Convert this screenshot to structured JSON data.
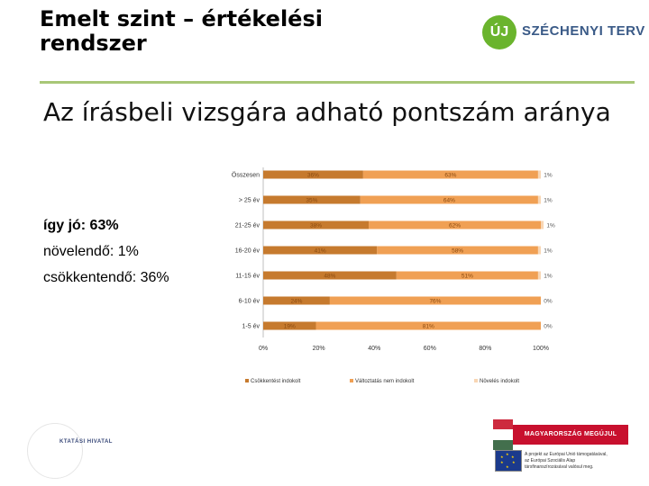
{
  "header": {
    "title_line1": "Emelt szint – értékelési",
    "title_line2": "rendszer",
    "logo_mark": "ÚJ",
    "logo_text": "SZÉCHENYI TERV"
  },
  "subtitle": "Az írásbeli vizsgára adható pontszám aránya",
  "summary": {
    "line1": "így jó: 63%",
    "line2": "növelendő: 1%",
    "line3": "csökkentendő: 36%"
  },
  "footer": {
    "office_name": "KTATÁSI HIVATAL",
    "badge_text": "MAGYARORSZÁG MEGÚJUL",
    "eu_line1": "A projekt az Európai Unió támogatásával,",
    "eu_line2": "az Európai Szociális Alap",
    "eu_line3": "társfinanszírozásával valósul meg.",
    "flag_colors": [
      "#cd2a3e",
      "#ffffff",
      "#436f4d"
    ]
  },
  "chart_data": {
    "type": "bar",
    "orientation": "horizontal",
    "stacked": true,
    "title": "",
    "categories": [
      "Összesen",
      "> 25 év",
      "21-25 év",
      "16-20 év",
      "11-15 év",
      "6-10 év",
      "1-5 év"
    ],
    "series": [
      {
        "name": "Csökkentést indokolt",
        "color": "#c67a2e",
        "values": [
          36,
          35,
          38,
          41,
          48,
          24,
          19
        ],
        "labels": [
          "36%",
          "35%",
          "38%",
          "41%",
          "48%",
          "24%",
          "19%"
        ]
      },
      {
        "name": "Változtatás nem indokolt",
        "color": "#f0a054",
        "values": [
          63,
          64,
          62,
          58,
          51,
          76,
          81
        ],
        "labels": [
          "63%",
          "64%",
          "62%",
          "58%",
          "51%",
          "76%",
          "81%"
        ]
      },
      {
        "name": "Növelés indokolt",
        "color": "#f8d6b4",
        "values": [
          1,
          1,
          1,
          1,
          1,
          0,
          0
        ],
        "labels": [
          "1%",
          "1%",
          "1%",
          "1%",
          "1%",
          "0%",
          "0%"
        ]
      }
    ],
    "xticks": [
      "0%",
      "20%",
      "40%",
      "60%",
      "80%",
      "100%"
    ],
    "xlim": [
      0,
      100
    ],
    "legend": [
      "Csökkentést indokolt",
      "Változtatás nem indokolt",
      "Növelés indokolt"
    ],
    "legend_position": "bottom"
  }
}
